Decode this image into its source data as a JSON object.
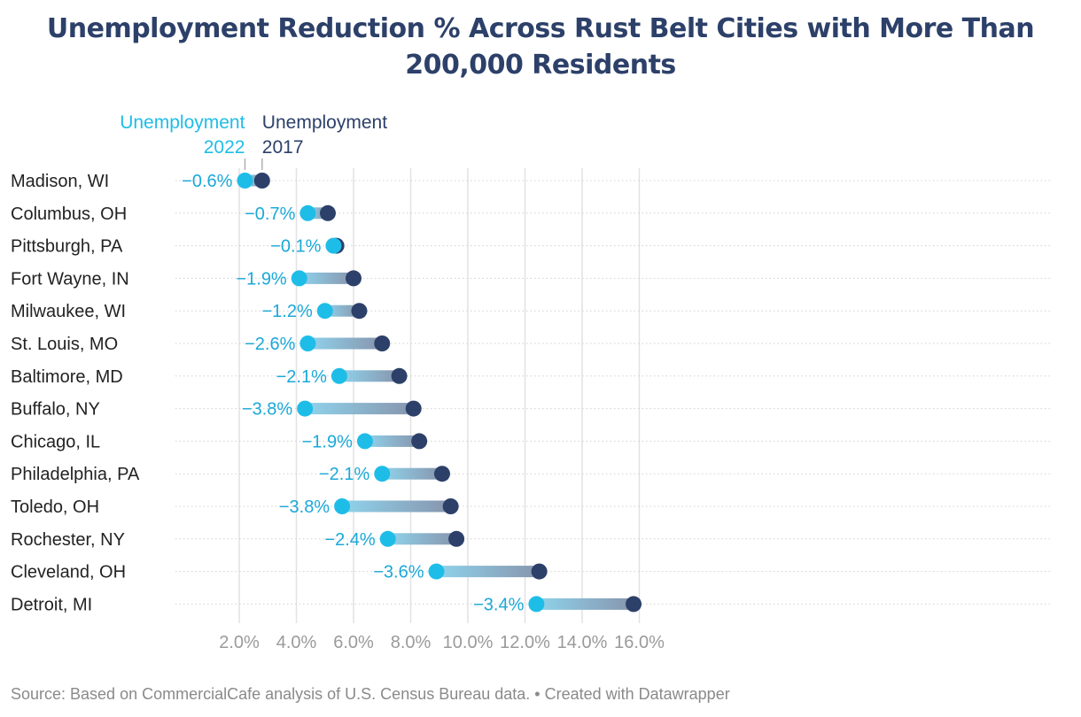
{
  "chart_data": {
    "type": "dumbbell",
    "title": "Unemployment Reduction % Across Rust Belt Cities with More Than 200,000 Residents",
    "legend": {
      "series_2022": [
        "Unemployment",
        "2022"
      ],
      "series_2017": [
        "Unemployment",
        "2017"
      ]
    },
    "colors": {
      "series_2022": "#1ebde8",
      "series_2017": "#2c4069",
      "label": "#1ba8d8",
      "axis": "#9a9a9a",
      "text": "#222222"
    },
    "x_axis": {
      "range": [
        0.0,
        16.3
      ],
      "ticks": [
        2,
        4,
        6,
        8,
        10,
        12,
        14,
        16
      ],
      "tick_labels": [
        "2.0%",
        "4.0%",
        "6.0%",
        "8.0%",
        "10.0%",
        "12.0%",
        "14.0%",
        "16.0%"
      ]
    },
    "rows": [
      {
        "city": "Madison, WI",
        "unemployment_2017": 2.8,
        "unemployment_2022": 2.2,
        "change_label": "−0.6%"
      },
      {
        "city": "Columbus, OH",
        "unemployment_2017": 5.1,
        "unemployment_2022": 4.4,
        "change_label": "−0.7%"
      },
      {
        "city": "Pittsburgh, PA",
        "unemployment_2017": 5.4,
        "unemployment_2022": 5.3,
        "change_label": "−0.1%"
      },
      {
        "city": "Fort Wayne, IN",
        "unemployment_2017": 6.0,
        "unemployment_2022": 4.1,
        "change_label": "−1.9%"
      },
      {
        "city": "Milwaukee, WI",
        "unemployment_2017": 6.2,
        "unemployment_2022": 5.0,
        "change_label": "−1.2%"
      },
      {
        "city": "St. Louis, MO",
        "unemployment_2017": 7.0,
        "unemployment_2022": 4.4,
        "change_label": "−2.6%"
      },
      {
        "city": "Baltimore, MD",
        "unemployment_2017": 7.6,
        "unemployment_2022": 5.5,
        "change_label": "−2.1%"
      },
      {
        "city": "Buffalo, NY",
        "unemployment_2017": 8.1,
        "unemployment_2022": 4.3,
        "change_label": "−3.8%"
      },
      {
        "city": "Chicago, IL",
        "unemployment_2017": 8.3,
        "unemployment_2022": 6.4,
        "change_label": "−1.9%"
      },
      {
        "city": "Philadelphia, PA",
        "unemployment_2017": 9.1,
        "unemployment_2022": 7.0,
        "change_label": "−2.1%"
      },
      {
        "city": "Toledo, OH",
        "unemployment_2017": 9.4,
        "unemployment_2022": 5.6,
        "change_label": "−3.8%"
      },
      {
        "city": "Rochester, NY",
        "unemployment_2017": 9.6,
        "unemployment_2022": 7.2,
        "change_label": "−2.4%"
      },
      {
        "city": "Cleveland, OH",
        "unemployment_2017": 12.5,
        "unemployment_2022": 8.9,
        "change_label": "−3.6%"
      },
      {
        "city": "Detroit, MI",
        "unemployment_2017": 15.8,
        "unemployment_2022": 12.4,
        "change_label": "−3.4%"
      }
    ]
  },
  "footer": "Source: Based on CommercialCafe analysis of U.S. Census Bureau data. • Created with Datawrapper"
}
